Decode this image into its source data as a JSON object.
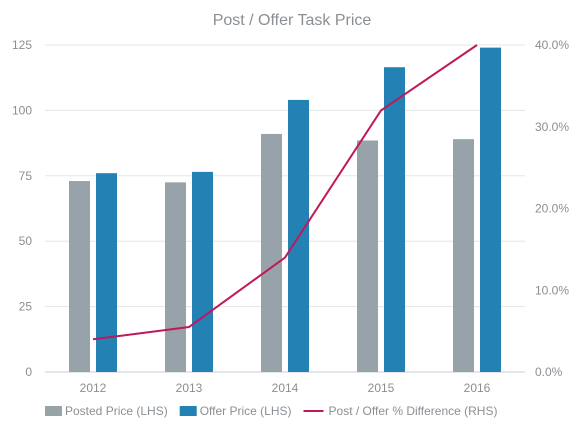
{
  "chart_data": {
    "type": "bar",
    "title": "Post / Offer Task Price",
    "categories": [
      "2012",
      "2013",
      "2014",
      "2015",
      "2016"
    ],
    "series": [
      {
        "name": "Posted Price (LHS)",
        "type": "bar",
        "axis": "left",
        "color": "#97a3a8",
        "values": [
          73,
          72.5,
          91,
          88.5,
          89
        ]
      },
      {
        "name": "Offer Price (LHS)",
        "type": "bar",
        "axis": "left",
        "color": "#2381b3",
        "values": [
          76,
          76.5,
          104,
          116.5,
          124
        ]
      },
      {
        "name": "Post / Offer % Difference (RHS)",
        "type": "line",
        "axis": "right",
        "color": "#c0185c",
        "values": [
          4.0,
          5.5,
          14.0,
          32.0,
          40.0
        ]
      }
    ],
    "y_left": {
      "min": 0,
      "max": 125,
      "ticks": [
        "0",
        "25",
        "50",
        "75",
        "100",
        "125"
      ]
    },
    "y_right": {
      "min": 0,
      "max": 40,
      "ticks": [
        "0.0%",
        "10.0%",
        "20.0%",
        "30.0%",
        "40.0%"
      ]
    },
    "grid": true,
    "legend_position": "bottom"
  }
}
